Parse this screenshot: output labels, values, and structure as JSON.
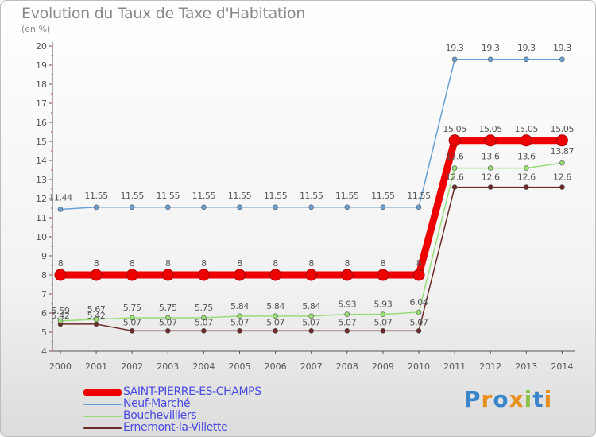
{
  "chart_data": {
    "type": "line",
    "title": "Evolution du Taux de Taxe d'Habitation",
    "unit_label": "(en %)",
    "x": [
      "2000",
      "2001",
      "2002",
      "2003",
      "2004",
      "2005",
      "2006",
      "2007",
      "2008",
      "2009",
      "2010",
      "2011",
      "2012",
      "2013",
      "2014"
    ],
    "yticks": [
      "4",
      "5",
      "6",
      "7",
      "8",
      "9",
      "10",
      "11",
      "12",
      "13",
      "14",
      "15",
      "16",
      "17",
      "18",
      "19",
      "20"
    ],
    "ylim": [
      4,
      20
    ],
    "grid": false,
    "legend_position": "bottom-left",
    "series": [
      {
        "name": "SAINT-PIERRE-ES-CHAMPS",
        "color": "#ee0000",
        "emphasis": true,
        "values": [
          8,
          8,
          8,
          8,
          8,
          8,
          8,
          8,
          8,
          8,
          8,
          15.05,
          15.05,
          15.05,
          15.05
        ],
        "labels": [
          "8",
          "8",
          "8",
          "8",
          "8",
          "8",
          "8",
          "8",
          "8",
          "8",
          "8",
          "15.05",
          "15.05",
          "15.05",
          "15.05"
        ]
      },
      {
        "name": "Neuf-Marché",
        "color": "#6a9fd4",
        "values": [
          11.44,
          11.55,
          11.55,
          11.55,
          11.55,
          11.55,
          11.55,
          11.55,
          11.55,
          11.55,
          11.55,
          19.3,
          19.3,
          19.3,
          19.3
        ],
        "labels": [
          "11.44",
          "11.55",
          "11.55",
          "11.55",
          "11.55",
          "11.55",
          "11.55",
          "11.55",
          "11.55",
          "11.55",
          "11.55",
          "19.3",
          "19.3",
          "19.3",
          "19.3"
        ]
      },
      {
        "name": "Bouchevilliers",
        "color": "#99dd77",
        "values": [
          5.59,
          5.67,
          5.75,
          5.75,
          5.75,
          5.84,
          5.84,
          5.84,
          5.93,
          5.93,
          6.04,
          13.6,
          13.6,
          13.6,
          13.87
        ],
        "labels": [
          "5.59",
          "5.67",
          "5.75",
          "5.75",
          "5.75",
          "5.84",
          "5.84",
          "5.84",
          "5.93",
          "5.93",
          "6.04",
          "13.6",
          "13.6",
          "13.6",
          "13.87"
        ]
      },
      {
        "name": "Ernemont-la-Villette",
        "color": "#6b2a2a",
        "values": [
          5.42,
          5.42,
          5.07,
          5.07,
          5.07,
          5.07,
          5.07,
          5.07,
          5.07,
          5.07,
          5.07,
          12.6,
          12.6,
          12.6,
          12.6
        ],
        "labels": [
          "5.42",
          "5.42",
          "5.07",
          "5.07",
          "5.07",
          "5.07",
          "5.07",
          "5.07",
          "5.07",
          "5.07",
          "5.07",
          "12.6",
          "12.6",
          "12.6",
          "12.6"
        ]
      }
    ]
  },
  "logo": {
    "letters": [
      "P",
      "r",
      "o",
      "x",
      "i",
      "t",
      "i"
    ],
    "colors": [
      "#3a86c8",
      "#e8901e",
      "#3a86c8",
      "#e8901e",
      "#8bc34a",
      "#3a86c8",
      "#e8901e"
    ]
  }
}
